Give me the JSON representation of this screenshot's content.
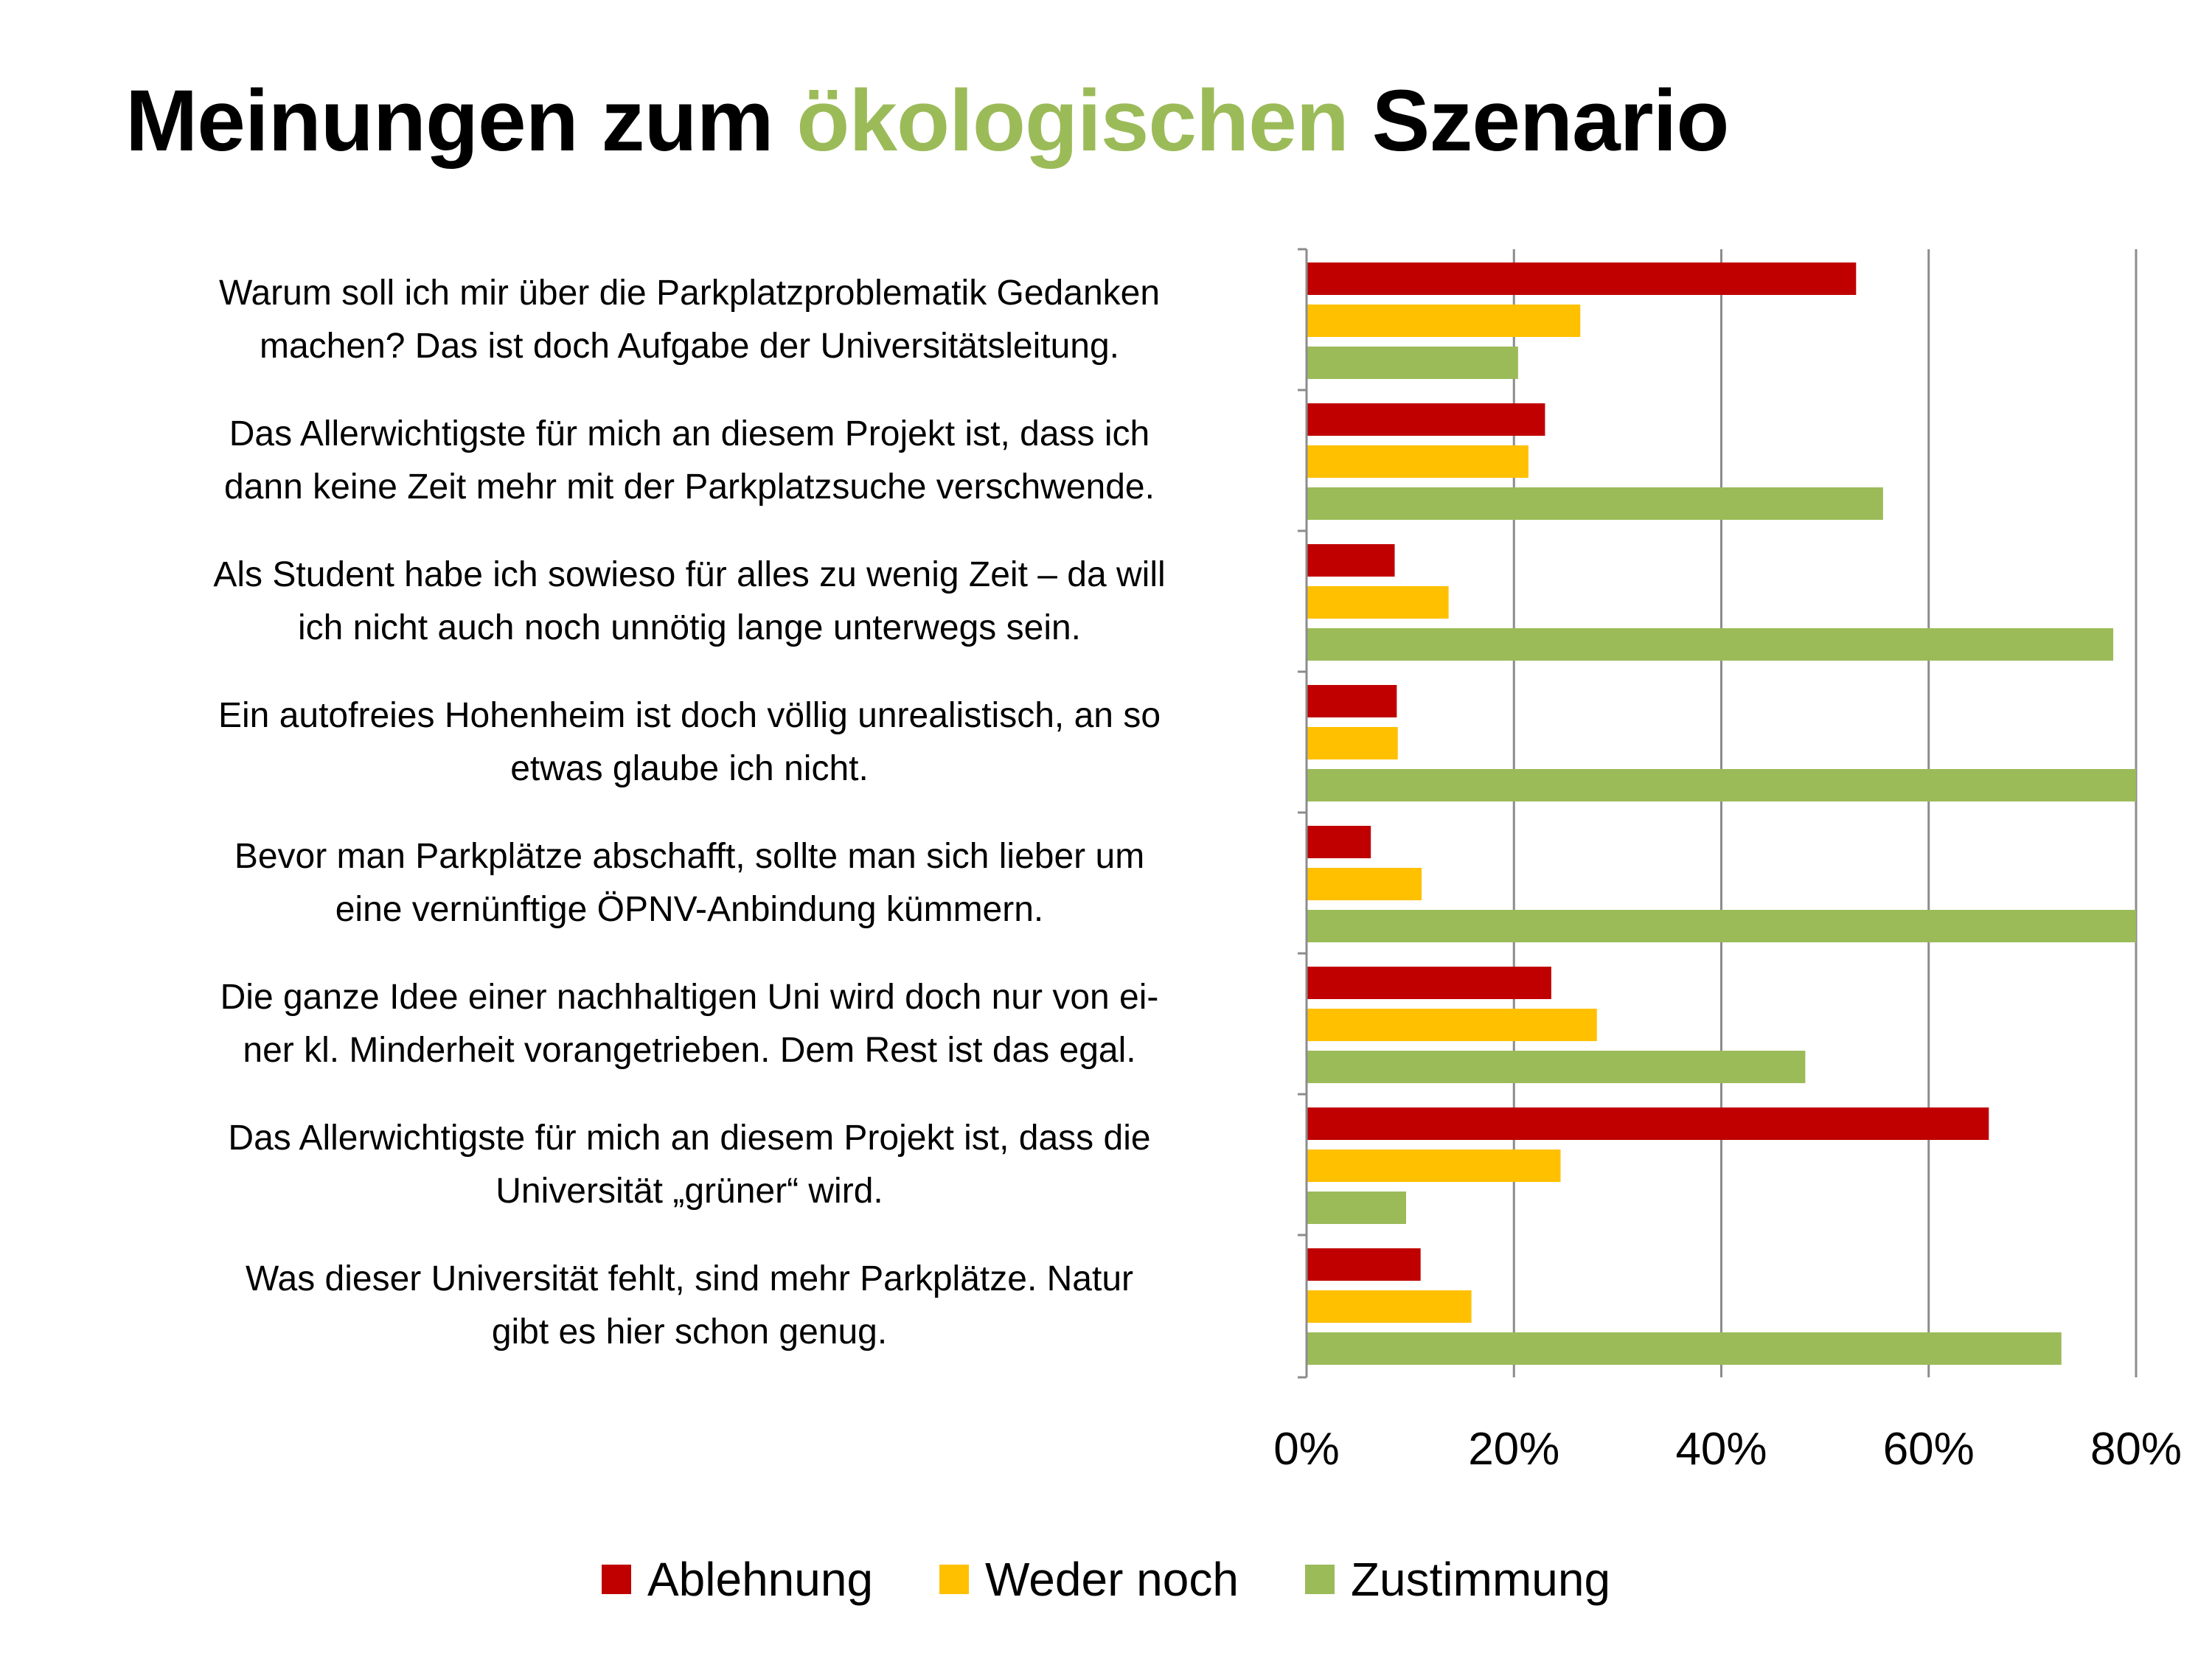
{
  "title": {
    "part1": "Meinungen zum ",
    "part2": "ökologischen",
    "part3": " Szenario",
    "accent_color": "#9bbb59"
  },
  "chart_data": {
    "type": "bar",
    "orientation": "horizontal",
    "grouped": true,
    "categories": [
      [
        "Warum soll ich mir über die Parkplatzproblematik Gedanken",
        "machen? Das ist doch Aufgabe der Universitätsleitung."
      ],
      [
        "Das Allerwichtigste für mich an diesem Projekt ist, dass ich",
        "dann keine Zeit mehr mit der Parkplatzsuche verschwende."
      ],
      [
        "Als Student habe ich sowieso für alles zu wenig Zeit – da will",
        "ich nicht auch noch unnötig lange unterwegs sein."
      ],
      [
        "Ein autofreies Hohenheim ist doch völlig unrealistisch, an so",
        "etwas glaube ich nicht."
      ],
      [
        "Bevor man Parkplätze abschafft, sollte man sich lieber um",
        "eine vernünftige ÖPNV-Anbindung kümmern."
      ],
      [
        "Die ganze Idee einer nachhaltigen Uni wird doch nur von ei-",
        "ner kl. Minderheit vorangetrieben. Dem Rest ist das egal."
      ],
      [
        "Das Allerwichtigste für mich an diesem Projekt ist, dass die",
        "Universität „grüner“ wird."
      ],
      [
        "Was dieser Universität fehlt, sind mehr Parkplätze. Natur",
        "gibt es hier schon genug."
      ]
    ],
    "series": [
      {
        "name": "Ablehnung",
        "color": "#c00000",
        "values": [
          53,
          23,
          8.5,
          8.7,
          6.2,
          23.6,
          65.8,
          11
        ]
      },
      {
        "name": "Weder noch",
        "color": "#ffc000",
        "values": [
          26.4,
          21.4,
          13.7,
          8.8,
          11.1,
          28,
          24.5,
          15.9
        ]
      },
      {
        "name": "Zustimmung",
        "color": "#9bbb59",
        "values": [
          20.4,
          55.6,
          77.8,
          80,
          80,
          48.1,
          9.6,
          72.8
        ]
      }
    ],
    "x_ticks": [
      "0%",
      "20%",
      "40%",
      "60%",
      "80%"
    ],
    "xlim": [
      0,
      80
    ],
    "grid": true,
    "legend": "bottom"
  }
}
